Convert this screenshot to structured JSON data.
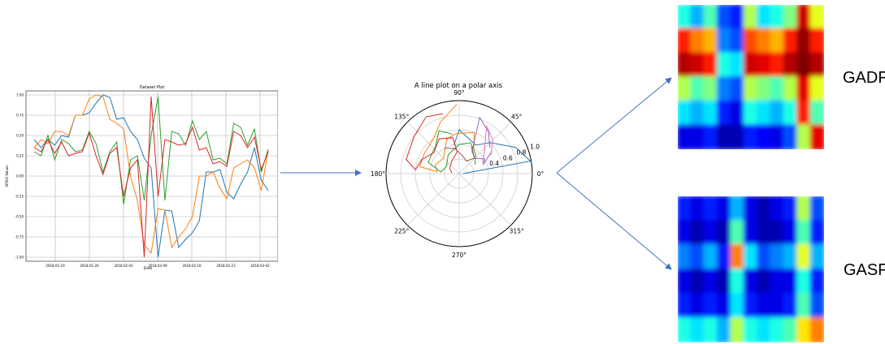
{
  "labels": {
    "gadf": "GADF",
    "gasf": "GASF"
  },
  "chart_data": [
    {
      "type": "line",
      "title": "Dataset Plot",
      "xlabel": "Date",
      "ylabel": "SP500 Values",
      "ylim": [
        -1.05,
        1.05
      ],
      "grid": true,
      "x_tick_labels": [
        "2018-01-19",
        "2018-01-26",
        "2018-02-02",
        "2018-02-09",
        "2018-02-16",
        "2018-02-23",
        "2018-03-02"
      ],
      "y_tick_labels": [
        "1.00",
        "0.75",
        "0.50",
        "0.25",
        "0.00",
        "-0.25",
        "-0.50",
        "-0.75",
        "-1.00"
      ],
      "series": [
        {
          "color": "#1f77b4",
          "values": [
            0.45,
            0.35,
            0.45,
            0.38,
            0.5,
            0.48,
            0.75,
            0.75,
            0.78,
            0.9,
            1.0,
            0.97,
            0.7,
            0.72,
            0.55,
            0.45,
            0.22,
            0.1,
            -1.0,
            -0.42,
            -0.43,
            -0.88,
            -0.78,
            -0.7,
            -0.55,
            0.05,
            0.05,
            0.08,
            -0.2,
            -0.28,
            -0.1,
            0.05,
            0.35,
            -0.05,
            -0.18
          ]
        },
        {
          "color": "#ff7f0e",
          "values": [
            0.35,
            0.45,
            0.4,
            0.55,
            0.55,
            0.5,
            0.75,
            0.75,
            0.95,
            1.0,
            0.98,
            0.7,
            0.65,
            0.58,
            0.0,
            -0.3,
            -0.85,
            -0.95,
            -0.4,
            -0.42,
            -0.88,
            -0.75,
            -0.65,
            -0.5,
            0.0,
            0.0,
            0.05,
            -0.15,
            -0.28,
            0.1,
            0.15,
            0.2,
            0.1,
            -0.18,
            0.32
          ]
        },
        {
          "color": "#2ca02c",
          "values": [
            0.3,
            0.25,
            0.5,
            0.2,
            0.45,
            0.4,
            0.3,
            0.32,
            0.55,
            0.4,
            0.05,
            0.3,
            0.42,
            -0.35,
            0.2,
            0.25,
            -0.3,
            0.5,
            0.98,
            -0.3,
            0.55,
            0.52,
            0.38,
            0.68,
            0.45,
            0.55,
            0.2,
            0.22,
            0.15,
            0.65,
            0.6,
            0.38,
            0.58,
            0.05,
            0.33
          ]
        },
        {
          "color": "#d62728",
          "values": [
            0.35,
            0.3,
            0.45,
            0.28,
            0.42,
            0.25,
            0.28,
            0.3,
            0.53,
            0.25,
            0.02,
            0.28,
            0.35,
            -0.25,
            0.1,
            0.2,
            -1.0,
            0.98,
            -0.25,
            0.45,
            0.42,
            0.38,
            0.4,
            0.6,
            0.32,
            0.35,
            0.15,
            0.18,
            0.12,
            0.55,
            0.5,
            0.35,
            0.48,
            0.08,
            0.3
          ]
        }
      ]
    },
    {
      "type": "line",
      "title": "A line plot on a polar axis",
      "angle_tick_labels": [
        "0°",
        "45°",
        "90°",
        "135°",
        "180°",
        "225°",
        "270°",
        "315°"
      ],
      "radial_tick_labels": [
        "0.4",
        "0.6",
        "0.8",
        "1.0"
      ],
      "rlim": [
        0,
        1.0
      ],
      "series": [
        {
          "color": "#1f77b4",
          "points": [
            [
              0,
              0.05
            ],
            [
              10,
              0.99
            ],
            [
              25,
              0.85
            ],
            [
              45,
              0.6
            ],
            [
              60,
              0.45
            ],
            [
              75,
              0.5
            ],
            [
              90,
              0.6
            ],
            [
              100,
              0.4
            ]
          ]
        },
        {
          "color": "#ff7f0e",
          "points": [
            [
              92,
              0.95
            ],
            [
              110,
              0.75
            ],
            [
              125,
              0.6
            ],
            [
              150,
              0.55
            ],
            [
              170,
              0.55
            ],
            [
              175,
              0.3
            ],
            [
              160,
              0.35
            ],
            [
              135,
              0.3
            ],
            [
              110,
              0.5
            ],
            [
              95,
              0.55
            ],
            [
              70,
              0.6
            ],
            [
              60,
              0.4
            ]
          ]
        },
        {
          "color": "#2ca02c",
          "points": [
            [
              100,
              0.55
            ],
            [
              115,
              0.65
            ],
            [
              130,
              0.5
            ],
            [
              160,
              0.45
            ],
            [
              175,
              0.25
            ],
            [
              150,
              0.2
            ],
            [
              120,
              0.3
            ],
            [
              90,
              0.4
            ],
            [
              70,
              0.45
            ],
            [
              50,
              0.35
            ],
            [
              30,
              0.25
            ]
          ]
        },
        {
          "color": "#d62728",
          "points": [
            [
              105,
              0.85
            ],
            [
              120,
              0.9
            ],
            [
              140,
              0.8
            ],
            [
              165,
              0.75
            ],
            [
              175,
              0.6
            ],
            [
              160,
              0.55
            ],
            [
              140,
              0.45
            ],
            [
              120,
              0.55
            ],
            [
              100,
              0.5
            ],
            [
              95,
              0.3
            ],
            [
              120,
              0.2
            ],
            [
              150,
              0.15
            ],
            [
              175,
              0.1
            ]
          ]
        },
        {
          "color": "#9467bd",
          "points": [
            [
              40,
              0.55
            ],
            [
              55,
              0.7
            ],
            [
              70,
              0.82
            ],
            [
              60,
              0.35
            ],
            [
              45,
              0.3
            ],
            [
              30,
              0.4
            ],
            [
              20,
              0.35
            ],
            [
              35,
              0.55
            ]
          ]
        },
        {
          "color": "#8c564b",
          "points": [
            [
              120,
              0.4
            ],
            [
              100,
              0.35
            ],
            [
              80,
              0.25
            ],
            [
              60,
              0.2
            ],
            [
              45,
              0.3
            ],
            [
              65,
              0.4
            ]
          ]
        },
        {
          "color": "#e377c2",
          "points": [
            [
              30,
              0.5
            ],
            [
              45,
              0.65
            ],
            [
              60,
              0.75
            ],
            [
              50,
              0.55
            ],
            [
              40,
              0.45
            ],
            [
              25,
              0.35
            ]
          ]
        }
      ]
    },
    {
      "type": "heatmap",
      "name": "GADF",
      "grid": [
        [
          0.4,
          0.3,
          0.45,
          0.2,
          0.15,
          0.55,
          0.35,
          0.4,
          0.5,
          0.92,
          0.6
        ],
        [
          0.85,
          0.75,
          0.7,
          0.25,
          0.2,
          0.8,
          0.75,
          0.7,
          0.85,
          0.98,
          0.85
        ],
        [
          0.95,
          0.92,
          0.85,
          0.4,
          0.35,
          0.92,
          0.9,
          0.85,
          0.95,
          1.0,
          0.95
        ],
        [
          0.55,
          0.45,
          0.5,
          0.25,
          0.2,
          0.55,
          0.5,
          0.45,
          0.55,
          0.9,
          0.6
        ],
        [
          0.35,
          0.3,
          0.35,
          0.15,
          0.1,
          0.4,
          0.35,
          0.3,
          0.4,
          0.85,
          0.45
        ],
        [
          0.1,
          0.1,
          0.15,
          0.05,
          0.05,
          0.15,
          0.12,
          0.1,
          0.2,
          0.55,
          0.9
        ]
      ]
    },
    {
      "type": "heatmap",
      "name": "GASF",
      "grid": [
        [
          0.15,
          0.1,
          0.15,
          0.1,
          0.3,
          0.1,
          0.05,
          0.1,
          0.15,
          0.55,
          0.2
        ],
        [
          0.1,
          0.05,
          0.1,
          0.05,
          0.45,
          0.1,
          0.05,
          0.05,
          0.1,
          0.45,
          0.15
        ],
        [
          0.25,
          0.2,
          0.3,
          0.15,
          0.75,
          0.35,
          0.2,
          0.25,
          0.3,
          0.6,
          0.3
        ],
        [
          0.1,
          0.05,
          0.1,
          0.05,
          0.4,
          0.1,
          0.05,
          0.1,
          0.1,
          0.4,
          0.15
        ],
        [
          0.15,
          0.1,
          0.15,
          0.1,
          0.35,
          0.15,
          0.1,
          0.1,
          0.15,
          0.45,
          0.2
        ],
        [
          0.4,
          0.35,
          0.4,
          0.3,
          0.55,
          0.4,
          0.35,
          0.4,
          0.45,
          0.65,
          0.75
        ]
      ]
    }
  ]
}
